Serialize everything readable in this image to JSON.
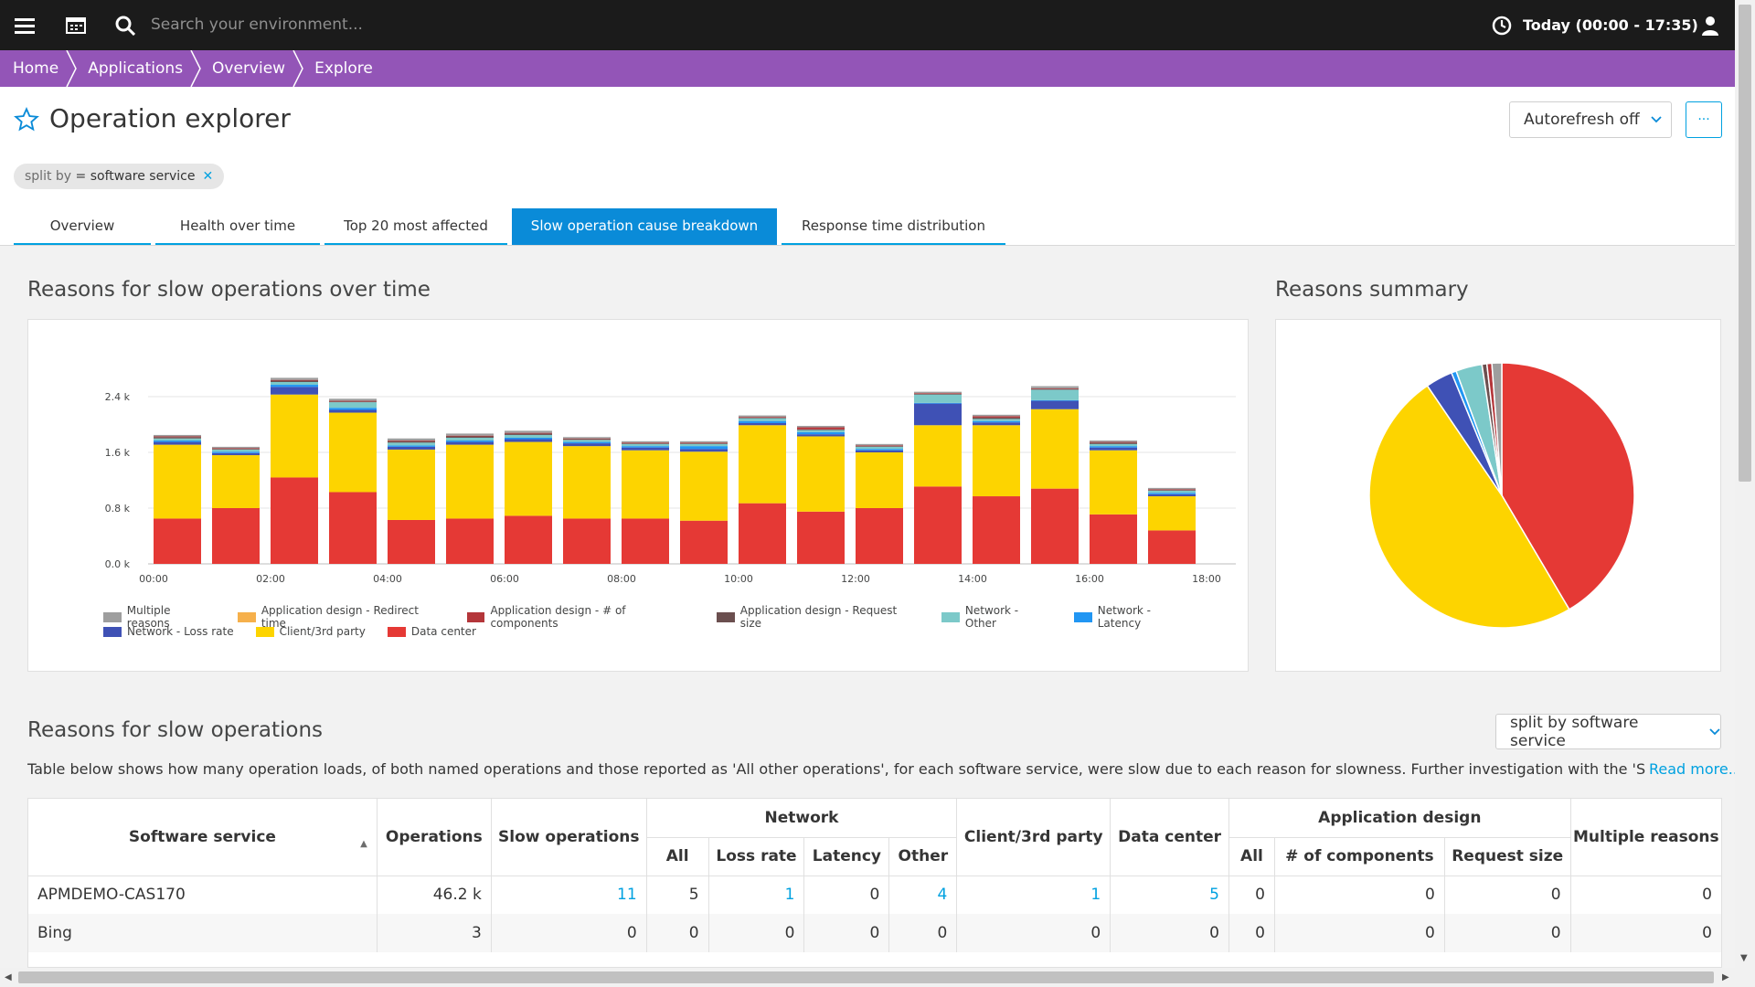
{
  "topbar": {
    "search_placeholder": "Search your environment...",
    "timeframe": "Today (00:00 - 17:35)",
    "icons": [
      "menu-icon",
      "dashboard-icon",
      "search-icon",
      "clock-icon",
      "user-icon"
    ]
  },
  "breadcrumb": [
    "Home",
    "Applications",
    "Overview",
    "Explore"
  ],
  "page": {
    "title": "Operation explorer",
    "autorefresh": "Autorefresh off",
    "more": "···"
  },
  "filter": {
    "key": "split by",
    "op": " = ",
    "value": "software service"
  },
  "tabs": [
    {
      "label": "Overview",
      "active": false
    },
    {
      "label": "Health over time",
      "active": false
    },
    {
      "label": "Top 20 most affected",
      "active": false
    },
    {
      "label": "Slow operation cause breakdown",
      "active": true
    },
    {
      "label": "Response time distribution",
      "active": false
    }
  ],
  "sections": {
    "over_time": "Reasons for slow operations over time",
    "summary": "Reasons summary",
    "reasons": "Reasons for slow operations",
    "split_button": "split by software service",
    "description": "Table below shows how many operation loads, of both named operations and those reported as 'All other operations', for each software service, were slow due to each reason for slowness. Further investigation with the 'Slow",
    "read_more": "Read more..."
  },
  "colors": {
    "Multiple reasons": "#9e9e9e",
    "Application design - Redirect time": "#f6b04b",
    "Application design - # of components": "#b4363a",
    "Application design - Request size": "#6b4f4f",
    "Network - Other": "#7cc9c9",
    "Network - Latency": "#2196f3",
    "Network - Loss rate": "#3f51b5",
    "Client/3rd party": "#fdd400",
    "Data center": "#e53935"
  },
  "chart_data": [
    {
      "type": "bar",
      "stacked": true,
      "title": "Reasons for slow operations over time",
      "categories": [
        "00:00",
        "01:00",
        "02:00",
        "03:00",
        "04:00",
        "05:00",
        "06:00",
        "07:00",
        "08:00",
        "09:00",
        "10:00",
        "11:00",
        "12:00",
        "13:00",
        "14:00",
        "15:00",
        "16:00",
        "17:00",
        "18:00"
      ],
      "x_tick_labels": [
        "00:00",
        "02:00",
        "04:00",
        "06:00",
        "08:00",
        "10:00",
        "12:00",
        "14:00",
        "16:00",
        "18:00"
      ],
      "y_tick_labels": [
        "0.0 k",
        "0.8 k",
        "1.6 k",
        "2.4 k"
      ],
      "ylim": [
        0,
        2700
      ],
      "grid": true,
      "legend_position": "bottom-left",
      "series": [
        {
          "name": "Data center",
          "values": [
            650,
            800,
            1240,
            1030,
            630,
            650,
            690,
            650,
            650,
            620,
            870,
            750,
            800,
            1110,
            970,
            1080,
            710,
            480,
            0
          ]
        },
        {
          "name": "Client/3rd party",
          "values": [
            1060,
            760,
            1190,
            1140,
            1010,
            1060,
            1060,
            1040,
            980,
            990,
            1120,
            1080,
            800,
            880,
            1020,
            1140,
            920,
            490,
            0
          ]
        },
        {
          "name": "Network - Loss rate",
          "values": [
            40,
            30,
            110,
            40,
            40,
            40,
            40,
            40,
            40,
            40,
            30,
            30,
            30,
            310,
            40,
            120,
            40,
            30,
            0
          ]
        },
        {
          "name": "Network - Latency",
          "values": [
            20,
            20,
            30,
            30,
            20,
            20,
            20,
            20,
            20,
            40,
            30,
            30,
            20,
            10,
            20,
            10,
            20,
            20,
            0
          ]
        },
        {
          "name": "Network - Other",
          "values": [
            30,
            30,
            40,
            80,
            40,
            40,
            40,
            30,
            30,
            30,
            40,
            30,
            30,
            120,
            30,
            150,
            30,
            30,
            0
          ]
        },
        {
          "name": "Application design - Request size",
          "values": [
            20,
            10,
            20,
            10,
            20,
            20,
            20,
            10,
            10,
            10,
            10,
            10,
            10,
            10,
            20,
            10,
            20,
            10,
            0
          ]
        },
        {
          "name": "Application design - # of components",
          "values": [
            10,
            10,
            10,
            10,
            10,
            10,
            10,
            10,
            10,
            10,
            10,
            30,
            10,
            10,
            20,
            10,
            10,
            10,
            0
          ]
        },
        {
          "name": "Application design - Redirect time",
          "values": [
            0,
            0,
            0,
            0,
            0,
            0,
            0,
            0,
            0,
            0,
            0,
            0,
            0,
            0,
            0,
            0,
            0,
            0,
            0
          ]
        },
        {
          "name": "Multiple reasons",
          "values": [
            20,
            20,
            30,
            30,
            30,
            30,
            30,
            20,
            20,
            20,
            20,
            20,
            20,
            20,
            20,
            30,
            20,
            20,
            0
          ]
        }
      ]
    },
    {
      "type": "pie",
      "title": "Reasons summary",
      "labels": [
        "Data center",
        "Client/3rd party",
        "Network - Loss rate",
        "Network - Latency",
        "Network - Other",
        "Application design - Request size",
        "Application design - # of components",
        "Multiple reasons"
      ],
      "values": [
        41.5,
        49.0,
        3.3,
        0.6,
        3.2,
        0.6,
        0.6,
        1.2
      ]
    }
  ],
  "table": {
    "headers": {
      "software_service": "Software service",
      "operations": "Operations",
      "slow_operations": "Slow operations",
      "network": "Network",
      "network_all": "All",
      "network_loss": "Loss rate",
      "network_latency": "Latency",
      "network_other": "Other",
      "client": "Client/3rd party",
      "datacenter": "Data center",
      "appdesign": "Application design",
      "app_all": "All",
      "app_components": "# of components",
      "app_request": "Request size",
      "multiple": "Multiple reasons"
    },
    "rows": [
      {
        "name": "APMDEMO-CAS170",
        "operations": "46.2 k",
        "slow": "11",
        "net_all": "5",
        "net_loss": "1",
        "net_latency": "0",
        "net_other": "4",
        "client": "1",
        "datacenter": "5",
        "app_all": "0",
        "app_components": "0",
        "app_request": "0",
        "multiple": "0"
      },
      {
        "name": "Bing",
        "operations": "3",
        "slow": "0",
        "net_all": "0",
        "net_loss": "0",
        "net_latency": "0",
        "net_other": "0",
        "client": "0",
        "datacenter": "0",
        "app_all": "0",
        "app_components": "0",
        "app_request": "0",
        "multiple": "0"
      }
    ]
  }
}
